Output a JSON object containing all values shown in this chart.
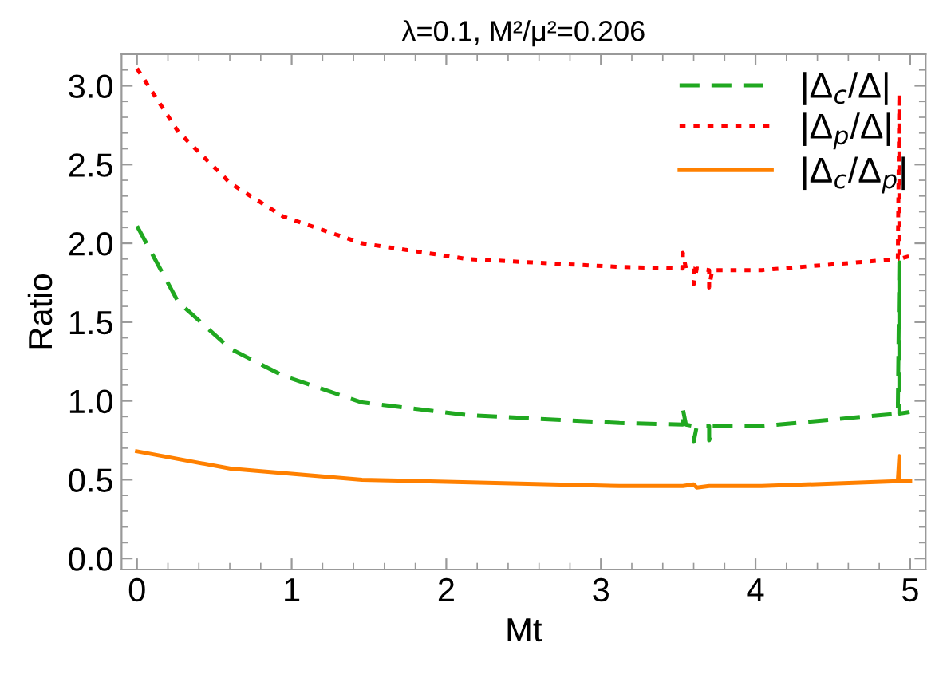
{
  "chart_data": {
    "type": "line",
    "title": "λ=0.1, M²/μ²=0.206",
    "xlabel": "Mt",
    "ylabel": "Ratio",
    "xlim": [
      -0.1,
      5.1
    ],
    "ylim": [
      -0.07,
      3.2
    ],
    "xticks": [
      0,
      1,
      2,
      3,
      4,
      5
    ],
    "yticks": [
      {
        "value": 0,
        "label": "0.0"
      },
      {
        "value": 0.5,
        "label": "0.5"
      },
      {
        "value": 1,
        "label": "1.0"
      },
      {
        "value": 1.5,
        "label": "1.5"
      },
      {
        "value": 2,
        "label": "2.0"
      },
      {
        "value": 2.5,
        "label": "2.5"
      },
      {
        "value": 3,
        "label": "3.0"
      }
    ],
    "grid": false,
    "legend": "top right",
    "series": [
      {
        "name": "|Δ$_{c}$/Δ|",
        "color": "#20a820",
        "line_style": "dashed",
        "x": [
          0,
          0.265,
          0.605,
          0.945,
          1.455,
          2.14,
          3.12,
          3.53,
          3.53,
          3.55,
          3.6,
          3.6,
          3.62,
          3.7,
          3.7,
          3.72,
          4.04,
          4.92,
          4.93,
          4.93,
          5.0
        ],
        "values": [
          2.11,
          1.63,
          1.33,
          1.16,
          0.99,
          0.91,
          0.86,
          0.85,
          0.95,
          0.85,
          0.84,
          0.74,
          0.84,
          0.84,
          0.75,
          0.84,
          0.84,
          0.92,
          1.88,
          0.92,
          0.93
        ]
      },
      {
        "name": "|Δ$_{p}$/Δ|",
        "color": "#ff0000",
        "line_style": "dotted",
        "x": [
          0,
          0.265,
          0.605,
          0.945,
          1.455,
          2.14,
          3.12,
          3.53,
          3.53,
          3.55,
          3.6,
          3.6,
          3.62,
          3.7,
          3.7,
          3.72,
          4.04,
          4.92,
          4.93,
          4.93,
          5.0
        ],
        "values": [
          3.11,
          2.71,
          2.38,
          2.17,
          2.0,
          1.9,
          1.85,
          1.84,
          1.94,
          1.84,
          1.84,
          1.74,
          1.84,
          1.83,
          1.72,
          1.83,
          1.83,
          1.9,
          2.95,
          1.9,
          1.92
        ]
      },
      {
        "name": "|Δ$_{c}$/Δ$_{p}$|",
        "color": "#ff8000",
        "line_style": "solid",
        "x": [
          0,
          0.605,
          1.455,
          3.12,
          3.53,
          3.6,
          3.62,
          3.7,
          4.04,
          4.92,
          4.93,
          4.93,
          5.0
        ],
        "values": [
          0.68,
          0.57,
          0.5,
          0.46,
          0.46,
          0.47,
          0.45,
          0.46,
          0.46,
          0.49,
          0.65,
          0.49,
          0.49
        ]
      }
    ]
  }
}
